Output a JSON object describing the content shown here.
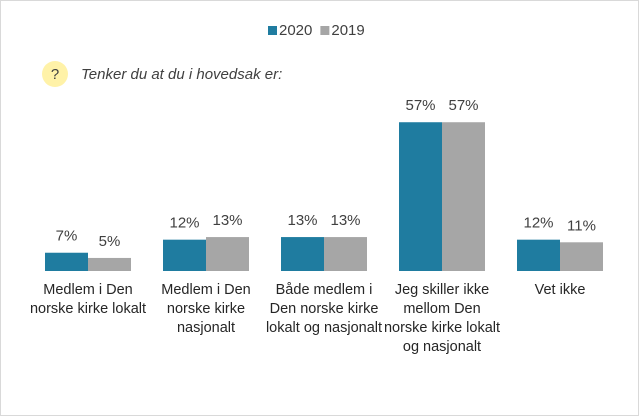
{
  "chart_data": {
    "type": "bar",
    "annotation_icon": "?",
    "subtitle": "Tenker du at du i hovedsak er:",
    "categories": [
      "Medlem i Den norske kirke lokalt",
      "Medlem i Den norske kirke nasjonalt",
      "Både medlem i Den norske kirke lokalt og nasjonalt",
      "Jeg skiller ikke mellom Den norske kirke lokalt og nasjonalt",
      "Vet ikke"
    ],
    "series": [
      {
        "name": "2020",
        "color": "#1f7ca0",
        "values": [
          7,
          12,
          13,
          57,
          12
        ],
        "value_labels": [
          "7%",
          "12%",
          "13%",
          "57%",
          "12%"
        ]
      },
      {
        "name": "2019",
        "color": "#a6a6a6",
        "values": [
          5,
          13,
          13,
          57,
          11
        ],
        "value_labels": [
          "5%",
          "13%",
          "13%",
          "57%",
          "11%"
        ]
      }
    ],
    "legend": "top"
  }
}
